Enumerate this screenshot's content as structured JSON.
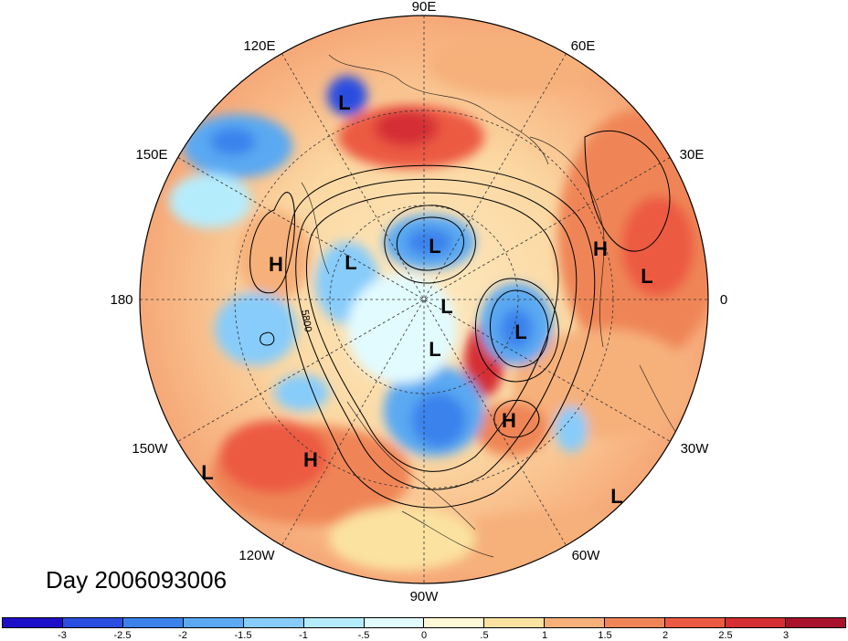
{
  "title": "Day 2006093006",
  "contour_label": "5800",
  "longitude_labels": {
    "lon_90e": "90E",
    "lon_60e": "60E",
    "lon_120e": "120E",
    "lon_30e": "30E",
    "lon_150e": "150E",
    "lon_0": "0",
    "lon_180": "180",
    "lon_30w": "30W",
    "lon_150w": "150W",
    "lon_60w": "60W",
    "lon_120w": "120W",
    "lon_90w": "90W"
  },
  "pressure_centers": [
    {
      "label": "L",
      "where": "far-east-siberia"
    },
    {
      "label": "L",
      "where": "arctic-siberia"
    },
    {
      "label": "L",
      "where": "beaufort"
    },
    {
      "label": "L",
      "where": "pole"
    },
    {
      "label": "L",
      "where": "north-atlantic"
    },
    {
      "label": "L",
      "where": "hudson-bay"
    },
    {
      "label": "L",
      "where": "north-africa"
    },
    {
      "label": "L",
      "where": "tropical-pacific"
    },
    {
      "label": "L",
      "where": "tropical-atlantic"
    },
    {
      "label": "H",
      "where": "north-pacific"
    },
    {
      "label": "H",
      "where": "arabia"
    },
    {
      "label": "H",
      "where": "east-pacific"
    },
    {
      "label": "H",
      "where": "mid-atlantic"
    }
  ],
  "colorbar": {
    "colors": [
      "#1d0fc8",
      "#2a4ee0",
      "#3b82ec",
      "#5aa9f2",
      "#87ccfa",
      "#b5ecfc",
      "#e2fbff",
      "#fff8d6",
      "#fbe2a0",
      "#f6b07a",
      "#ef8557",
      "#ec5a43",
      "#d52f34",
      "#a8122a"
    ],
    "tick_labels": [
      "-3",
      "-2.5",
      "-2",
      "-1.5",
      "-1",
      "-.5",
      "0",
      ".5",
      "1",
      "1.5",
      "2",
      "2.5",
      "3"
    ]
  }
}
